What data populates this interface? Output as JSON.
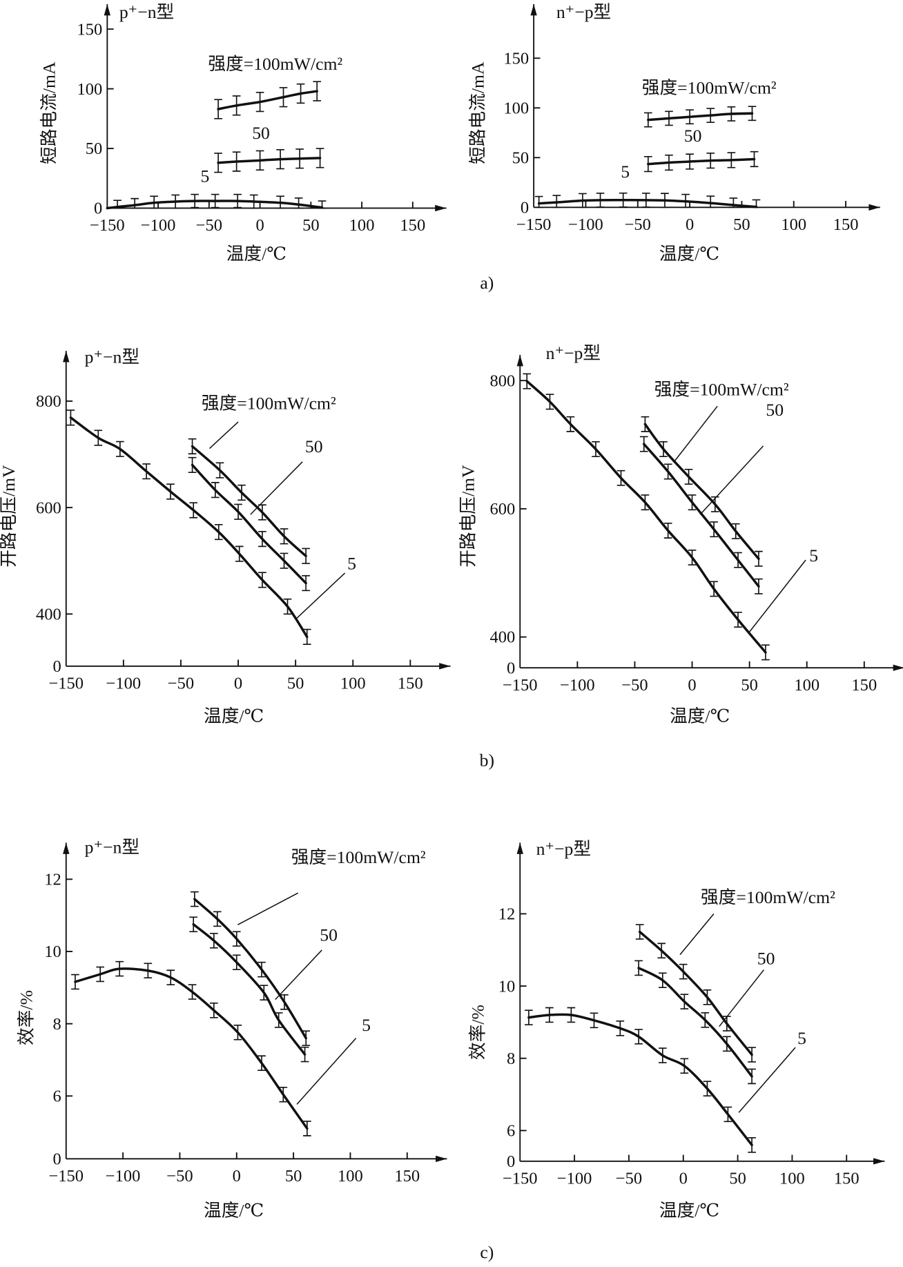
{
  "panel_labels": [
    "a)",
    "b)",
    "c)"
  ],
  "chart_data": [
    {
      "type": "line",
      "panel": "a)",
      "title": "p⁺−n型",
      "xlabel": "温度/℃",
      "ylabel": "短路电流/mA",
      "xlim": [
        -150,
        183
      ],
      "ylim": [
        0,
        170
      ],
      "xticks": [
        {
          "v": -150,
          "label": "−150"
        },
        {
          "v": -100,
          "label": "−100"
        },
        {
          "v": -50,
          "label": "−50"
        },
        {
          "v": 0,
          "label": "0"
        },
        {
          "v": 50,
          "label": "50"
        },
        {
          "v": 100,
          "label": "100"
        },
        {
          "v": 150,
          "label": "150"
        }
      ],
      "yticks": [
        {
          "v": 0,
          "label": "0"
        },
        {
          "v": 50,
          "label": "50"
        },
        {
          "v": 100,
          "label": "100"
        },
        {
          "v": 150,
          "label": "150"
        }
      ],
      "series": [
        {
          "name": "100",
          "label": "强度=100mW/cm²",
          "x": [
            -41,
            -23,
            0,
            23,
            40,
            56
          ],
          "y": [
            83,
            86,
            89,
            93,
            96,
            98
          ],
          "err": 8
        },
        {
          "name": "50",
          "label": "50",
          "x": [
            -41,
            -23,
            0,
            20,
            39,
            59
          ],
          "y": [
            38,
            39,
            40,
            41,
            41.5,
            42
          ],
          "err": 8
        },
        {
          "name": "5",
          "label": "5",
          "x": [
            -150,
            -140,
            -123,
            -104,
            -83,
            -64,
            -44,
            -22,
            -6,
            20,
            38,
            61
          ],
          "y": [
            0,
            1,
            2.5,
            4.5,
            5.5,
            6,
            6,
            6,
            5.5,
            4.5,
            3,
            0.5
          ],
          "err": 5.5
        }
      ]
    },
    {
      "type": "line",
      "panel": "a)",
      "title": "n⁺−p型",
      "xlabel": "温度/℃",
      "ylabel": "短路电流/mA",
      "xlim": [
        -150,
        183
      ],
      "ylim": [
        0,
        204
      ],
      "xticks": [
        {
          "v": -150,
          "label": "−150"
        },
        {
          "v": -100,
          "label": "−100"
        },
        {
          "v": -50,
          "label": "−50"
        },
        {
          "v": 0,
          "label": "0"
        },
        {
          "v": 50,
          "label": "50"
        },
        {
          "v": 100,
          "label": "100"
        },
        {
          "v": 150,
          "label": "150"
        }
      ],
      "yticks": [
        {
          "v": 0,
          "label": "0"
        },
        {
          "v": 50,
          "label": "50"
        },
        {
          "v": 100,
          "label": "100"
        },
        {
          "v": 150,
          "label": "150"
        }
      ],
      "series": [
        {
          "name": "100",
          "label": "强度=100mW/cm²",
          "x": [
            -40,
            -20,
            0,
            20,
            40,
            60
          ],
          "y": [
            88,
            89.5,
            91,
            92.5,
            94,
            94.5
          ],
          "err": 7
        },
        {
          "name": "50",
          "label": "50",
          "x": [
            -40,
            -20,
            0,
            20,
            40,
            62
          ],
          "y": [
            43.5,
            45,
            46,
            47,
            47.5,
            48.5
          ],
          "err": 7.5
        },
        {
          "name": "5",
          "label": "5",
          "x": [
            -145,
            -128,
            -103,
            -86,
            -64,
            -42,
            -24,
            -4,
            20,
            42,
            64
          ],
          "y": [
            3.9,
            5,
            6.8,
            7.2,
            7.3,
            7.2,
            7,
            6,
            4.3,
            2.3,
            0.5
          ],
          "err": 7
        }
      ]
    },
    {
      "type": "line",
      "panel": "b)",
      "title": "p⁺−n型",
      "xlabel": "温度/℃",
      "ylabel": "开路电压/mV",
      "xlim": [
        -150,
        185
      ],
      "ylim": [
        302,
        900
      ],
      "y_axis_break": true,
      "xticks": [
        {
          "v": -150,
          "label": "−150"
        },
        {
          "v": -100,
          "label": "−100"
        },
        {
          "v": -50,
          "label": "−50"
        },
        {
          "v": 0,
          "label": "0"
        },
        {
          "v": 50,
          "label": "50"
        },
        {
          "v": 100,
          "label": "100"
        },
        {
          "v": 150,
          "label": "150"
        }
      ],
      "yticks": [
        {
          "v": 0,
          "label": "0"
        },
        {
          "v": 400,
          "label": "400"
        },
        {
          "v": 600,
          "label": "600"
        },
        {
          "v": 800,
          "label": "800"
        }
      ],
      "series": [
        {
          "name": "100",
          "label": "强度=100mW/cm²",
          "x": [
            -40,
            -16,
            3,
            21,
            40,
            59
          ],
          "y": [
            715,
            670,
            628,
            591,
            546,
            509
          ],
          "err": 14
        },
        {
          "name": "50",
          "label": "50",
          "x": [
            -40,
            -20,
            0,
            21,
            40,
            59
          ],
          "y": [
            680,
            633,
            592,
            541,
            500,
            458
          ],
          "err": 14
        },
        {
          "name": "5",
          "label": "5",
          "x": [
            -146,
            -122,
            -103,
            -80,
            -59,
            -39,
            -17,
            1,
            21,
            43,
            60
          ],
          "y": [
            769,
            731,
            710,
            668,
            630,
            595,
            554,
            513,
            464,
            414,
            357
          ],
          "err": 14
        }
      ]
    },
    {
      "type": "line",
      "panel": "b)",
      "title": "n⁺−p型",
      "xlabel": "温度/℃",
      "ylabel": "开路电压/mV",
      "xlim": [
        -150,
        185
      ],
      "ylim": [
        352,
        840
      ],
      "y_axis_break": true,
      "xticks": [
        {
          "v": -150,
          "label": "−150"
        },
        {
          "v": -100,
          "label": "−100"
        },
        {
          "v": -50,
          "label": "−50"
        },
        {
          "v": 0,
          "label": "0"
        },
        {
          "v": 50,
          "label": "50"
        },
        {
          "v": 100,
          "label": "100"
        },
        {
          "v": 150,
          "label": "150"
        }
      ],
      "yticks": [
        {
          "v": 0,
          "label": "0"
        },
        {
          "v": 400,
          "label": "400"
        },
        {
          "v": 600,
          "label": "600"
        },
        {
          "v": 800,
          "label": "800"
        }
      ],
      "series": [
        {
          "name": "100",
          "label": "强度=100mW/cm²",
          "x": [
            -41,
            -25,
            -3,
            20,
            38,
            58
          ],
          "y": [
            732,
            693,
            650,
            607,
            565,
            522
          ],
          "err": 11.5
        },
        {
          "name": "50",
          "label": "50",
          "x": [
            -42,
            -21,
            0,
            19,
            40,
            58
          ],
          "y": [
            701,
            658,
            610,
            568,
            520,
            479
          ],
          "err": 11.5
        },
        {
          "name": "5",
          "label": "5",
          "x": [
            -144,
            -124,
            -106,
            -84,
            -62,
            -41,
            -21,
            0,
            19,
            40,
            64
          ],
          "y": [
            799,
            767,
            732,
            693,
            648,
            610,
            566,
            524,
            475,
            427,
            376
          ],
          "err": 11.5
        }
      ]
    },
    {
      "type": "line",
      "panel": "c)",
      "title": "p⁺−n型",
      "xlabel": "温度/℃",
      "ylabel": "效率/%",
      "xlim": [
        -150,
        185
      ],
      "ylim": [
        4.26,
        13.0
      ],
      "y_axis_break": true,
      "xticks": [
        {
          "v": -150,
          "label": "−150"
        },
        {
          "v": -100,
          "label": "−100"
        },
        {
          "v": -50,
          "label": "−50"
        },
        {
          "v": 0,
          "label": "0"
        },
        {
          "v": 50,
          "label": "50"
        },
        {
          "v": 100,
          "label": "100"
        },
        {
          "v": 150,
          "label": "150"
        }
      ],
      "yticks": [
        {
          "v": 0,
          "label": "0"
        },
        {
          "v": 6,
          "label": "6"
        },
        {
          "v": 8,
          "label": "8"
        },
        {
          "v": 10,
          "label": "10"
        },
        {
          "v": 12,
          "label": "12"
        }
      ],
      "series": [
        {
          "name": "100",
          "label": "强度=100mW/cm²",
          "x": [
            -37,
            -17,
            0,
            22,
            42,
            61
          ],
          "y": [
            11.45,
            10.9,
            10.35,
            9.5,
            8.6,
            7.6
          ],
          "err": 0.2
        },
        {
          "name": "50",
          "label": "50",
          "x": [
            -38,
            -20,
            0,
            24,
            37,
            60
          ],
          "y": [
            10.75,
            10.3,
            9.7,
            8.86,
            8.1,
            7.15
          ],
          "err": 0.2
        },
        {
          "name": "5",
          "label": "5",
          "x": [
            -142,
            -120,
            -103,
            -78,
            -58,
            -39,
            -20,
            1,
            22,
            41,
            62
          ],
          "y": [
            9.16,
            9.37,
            9.52,
            9.47,
            9.28,
            8.88,
            8.37,
            7.76,
            6.91,
            6.04,
            5.1
          ],
          "err": 0.2
        }
      ]
    },
    {
      "type": "line",
      "panel": "c)",
      "title": "n⁺−p型",
      "xlabel": "温度/℃",
      "ylabel": "效率/%",
      "xlim": [
        -150,
        185
      ],
      "ylim": [
        5.15,
        13.9
      ],
      "y_axis_break": true,
      "xticks": [
        {
          "v": -150,
          "label": "−150"
        },
        {
          "v": -100,
          "label": "−100"
        },
        {
          "v": -50,
          "label": "−50"
        },
        {
          "v": 0,
          "label": "0"
        },
        {
          "v": 50,
          "label": "50"
        },
        {
          "v": 100,
          "label": "100"
        },
        {
          "v": 150,
          "label": "150"
        }
      ],
      "yticks": [
        {
          "v": 0,
          "label": "0"
        },
        {
          "v": 6,
          "label": "6"
        },
        {
          "v": 8,
          "label": "8"
        },
        {
          "v": 10,
          "label": "10"
        },
        {
          "v": 12,
          "label": "12"
        }
      ],
      "series": [
        {
          "name": "100",
          "label": "强度=100mW/cm²",
          "x": [
            -40,
            -20,
            0,
            22,
            40,
            63
          ],
          "y": [
            11.5,
            10.98,
            10.4,
            9.69,
            8.96,
            8.1
          ],
          "err": 0.2
        },
        {
          "name": "50",
          "label": "50",
          "x": [
            -41,
            -19,
            1,
            20,
            40,
            63
          ],
          "y": [
            10.5,
            10.16,
            9.57,
            9.06,
            8.4,
            7.5
          ],
          "err": 0.2
        },
        {
          "name": "5",
          "label": "5",
          "x": [
            -142,
            -123,
            -103,
            -82,
            -58,
            -41,
            -19,
            1,
            22,
            41,
            63
          ],
          "y": [
            9.13,
            9.2,
            9.2,
            9.05,
            8.83,
            8.6,
            8.08,
            7.79,
            7.16,
            6.45,
            5.6
          ],
          "err": 0.2
        }
      ]
    }
  ]
}
